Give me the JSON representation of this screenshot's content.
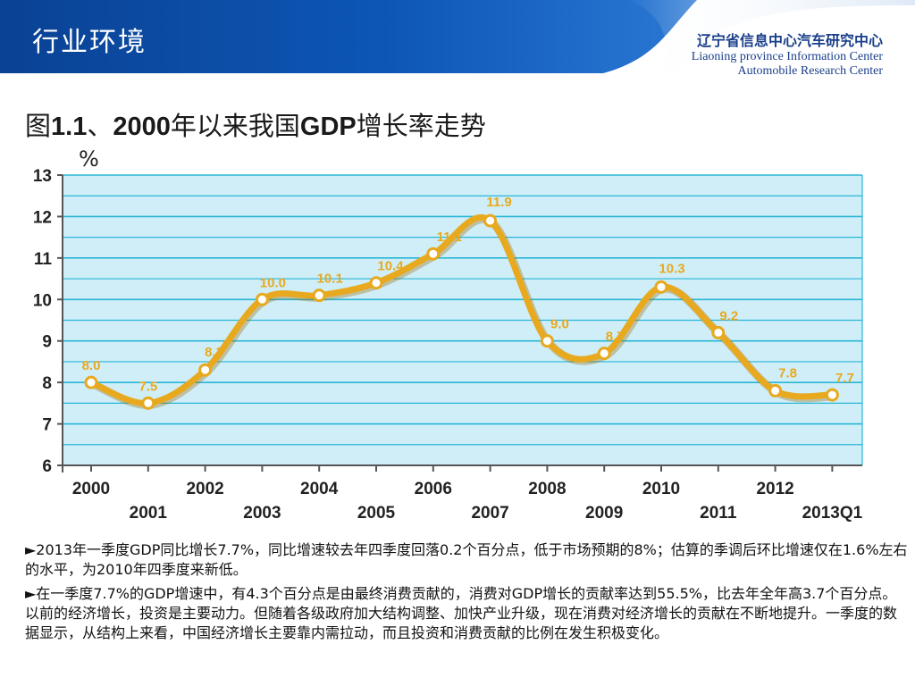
{
  "header": {
    "title": "行业环境",
    "org_cn": "辽宁省信息中心汽车研究中心",
    "org_en_line1": "Liaoning province Information Center",
    "org_en_line2": "Automobile Research Center"
  },
  "figure": {
    "title_prefix": "图",
    "title_num": "1.1",
    "title_mid1": "、",
    "title_year": "2000",
    "title_mid2": "年以来我国",
    "title_gdp": "GDP",
    "title_suffix": "增长率走势"
  },
  "chart_data": {
    "type": "line",
    "categories": [
      "2000",
      "2001",
      "2002",
      "2003",
      "2004",
      "2005",
      "2006",
      "2007",
      "2008",
      "2009",
      "2010",
      "2011",
      "2012",
      "2013Q1"
    ],
    "series": [
      {
        "values": [
          8.0,
          7.5,
          8.3,
          10.0,
          10.1,
          10.4,
          11.1,
          11.9,
          9.0,
          8.7,
          10.3,
          9.2,
          7.8,
          7.7
        ]
      }
    ],
    "data_labels": [
      "8.0",
      "7.5",
      "8.3",
      "10.0",
      "10.1",
      "10.4",
      "11.1",
      "11.9",
      "9.0",
      "8.7",
      "10.3",
      "9.2",
      "7.8",
      "7.7"
    ],
    "y_unit_label": "%",
    "ylim": [
      6,
      13
    ],
    "yticks": [
      "6",
      "7",
      "8",
      "9",
      "10",
      "11",
      "12",
      "13"
    ],
    "grid": true,
    "plot_bg": "#cfeef8",
    "grid_color": "#29b6d6",
    "line_color": "#e8a91e",
    "label_color": "#e8a91e"
  },
  "notes": [
    "►2013年一季度GDP同比增长7.7%，同比增速较去年四季度回落0.2个百分点，低于市场预期的8%；估算的季调后环比增速仅在1.6%左右的水平，为2010年四季度来新低。",
    "►在一季度7.7%的GDP增速中，有4.3个百分点是由最终消费贡献的，消费对GDP增长的贡献率达到55.5%，比去年全年高3.7个百分点。以前的经济增长，投资是主要动力。但随着各级政府加大结构调整、加快产业升级，现在消费对经济增长的贡献在不断地提升。一季度的数据显示，从结构上来看，中国经济增长主要靠内需拉动，而且投资和消费贡献的比例在发生积极变化。"
  ],
  "colors": {
    "header_blue": "#0b4a9c",
    "org_text": "#1a3f8a"
  }
}
